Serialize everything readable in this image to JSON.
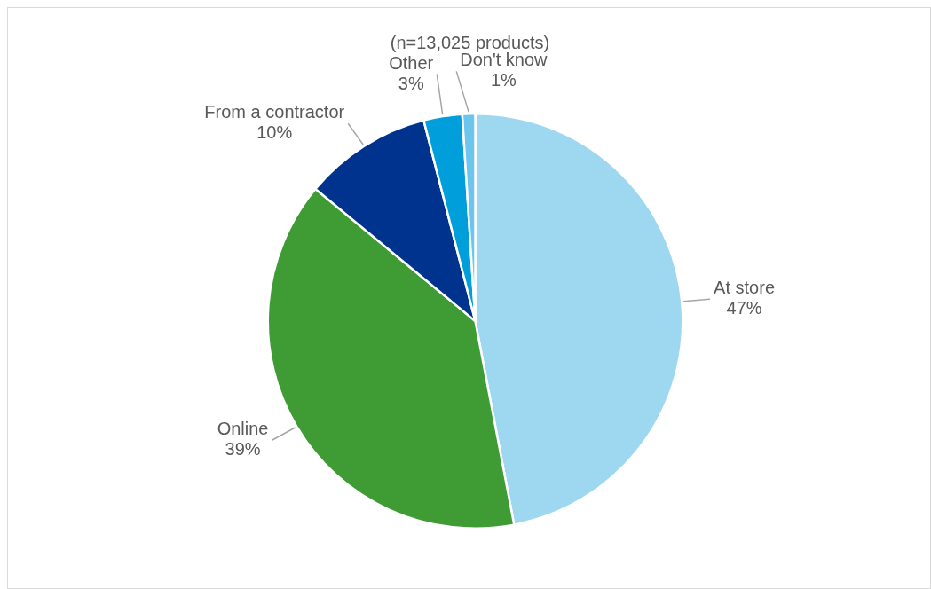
{
  "chart_data": {
    "type": "pie",
    "subtitle": "(n=13,025 products)",
    "categories": [
      "At store",
      "Online",
      "From a contractor",
      "Other",
      "Don't know"
    ],
    "values": [
      47,
      39,
      10,
      3,
      1
    ],
    "value_labels": [
      "47%",
      "39%",
      "10%",
      "3%",
      "1%"
    ],
    "colors": [
      "#9dd7f0",
      "#3f9c35",
      "#00338d",
      "#009fdb",
      "#6cc5ec"
    ],
    "legend": false
  }
}
